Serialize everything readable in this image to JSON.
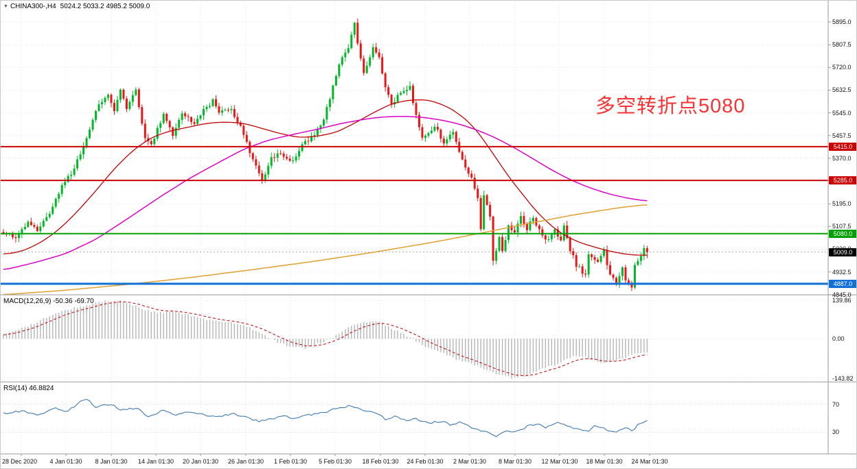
{
  "header": {
    "marker": "▼",
    "symbol": "CHINA300-,H4",
    "values": "5024.2 5033.2 4985.2 5009.0"
  },
  "annotation": {
    "text": "多空转折点5080",
    "color": "#fb3232"
  },
  "panes": {
    "macd": {
      "label": "MACD(12,26,9) -50.36 -69.70"
    },
    "rsi": {
      "label": "RSI(14) 46.8824"
    }
  },
  "colors": {
    "background": "#ffffff",
    "grid": "#e0e0e0",
    "separator": "#9a9a9a",
    "axis_text": "#111111"
  },
  "chart_data": [
    {
      "type": "candlestick",
      "title": "CHINA300- H4 price chart",
      "symbol": "CHINA300-",
      "timeframe": "H4",
      "last_candle": {
        "open": 5024.2,
        "high": 5033.2,
        "low": 4985.2,
        "close": 5009.0
      },
      "num_candles": 210,
      "y_range": [
        4845,
        5940
      ],
      "y_tick_labels": [
        "5895.0",
        "5807.5",
        "5720.0",
        "5632.5",
        "5545.0",
        "5457.5",
        "5370.0",
        "5282.5",
        "5195.0",
        "5107.5",
        "5020.0",
        "4932.5",
        "4845.0"
      ],
      "x_tick_labels": [
        "28 Dec 2020",
        "4 Jan 01:30",
        "8 Jan 01:30",
        "14 Jan 01:30",
        "20 Jan 01:30",
        "26 Jan 01:30",
        "1 Feb 01:30",
        "5 Feb 01:30",
        "18 Feb 01:30",
        "24 Feb 01:30",
        "2 Mar 01:30",
        "8 Mar 01:30",
        "12 Mar 01:30",
        "18 Mar 01:30",
        "24 Mar 01:30"
      ],
      "up_color": "#00b728",
      "down_color": "#ea1515",
      "price_path_anchors": [
        [
          0,
          5085
        ],
        [
          4,
          5060
        ],
        [
          8,
          5120
        ],
        [
          11,
          5090
        ],
        [
          16,
          5180
        ],
        [
          19,
          5265
        ],
        [
          23,
          5330
        ],
        [
          26,
          5420
        ],
        [
          28,
          5480
        ],
        [
          30,
          5560
        ],
        [
          34,
          5610
        ],
        [
          36,
          5555
        ],
        [
          38,
          5640
        ],
        [
          40,
          5565
        ],
        [
          43,
          5630
        ],
        [
          46,
          5450
        ],
        [
          48,
          5420
        ],
        [
          52,
          5545
        ],
        [
          55,
          5460
        ],
        [
          58,
          5545
        ],
        [
          62,
          5505
        ],
        [
          65,
          5555
        ],
        [
          68,
          5590
        ],
        [
          70,
          5545
        ],
        [
          74,
          5560
        ],
        [
          77,
          5490
        ],
        [
          80,
          5395
        ],
        [
          84,
          5280
        ],
        [
          87,
          5370
        ],
        [
          90,
          5390
        ],
        [
          94,
          5355
        ],
        [
          97,
          5420
        ],
        [
          101,
          5465
        ],
        [
          104,
          5520
        ],
        [
          106,
          5600
        ],
        [
          109,
          5730
        ],
        [
          112,
          5795
        ],
        [
          114,
          5885
        ],
        [
          115,
          5805
        ],
        [
          117,
          5700
        ],
        [
          120,
          5790
        ],
        [
          122,
          5755
        ],
        [
          124,
          5640
        ],
        [
          126,
          5575
        ],
        [
          128,
          5615
        ],
        [
          132,
          5650
        ],
        [
          134,
          5530
        ],
        [
          136,
          5450
        ],
        [
          140,
          5495
        ],
        [
          143,
          5430
        ],
        [
          146,
          5465
        ],
        [
          149,
          5360
        ],
        [
          152,
          5295
        ],
        [
          154,
          5210
        ],
        [
          155,
          5095
        ],
        [
          156,
          5230
        ],
        [
          158,
          5150
        ],
        [
          159,
          4975
        ],
        [
          161,
          5065
        ],
        [
          162,
          5020
        ],
        [
          164,
          5105
        ],
        [
          166,
          5085
        ],
        [
          168,
          5145
        ],
        [
          170,
          5100
        ],
        [
          172,
          5140
        ],
        [
          174,
          5090
        ],
        [
          176,
          5050
        ],
        [
          179,
          5090
        ],
        [
          181,
          5055
        ],
        [
          182,
          5105
        ],
        [
          184,
          5020
        ],
        [
          186,
          4960
        ],
        [
          189,
          4920
        ],
        [
          190,
          5000
        ],
        [
          193,
          4965
        ],
        [
          195,
          5010
        ],
        [
          197,
          4920
        ],
        [
          199,
          4890
        ],
        [
          201,
          4950
        ],
        [
          202,
          4905
        ],
        [
          204,
          4880
        ],
        [
          205,
          4960
        ],
        [
          207,
          4990
        ],
        [
          208,
          5024
        ],
        [
          209,
          5009
        ]
      ],
      "moving_averages": [
        {
          "name": "ma-fast-red",
          "color": "#c00000",
          "width": 1.3,
          "anchors": [
            [
              0,
              5000
            ],
            [
              6,
              5012
            ],
            [
              12,
              5045
            ],
            [
              18,
              5095
            ],
            [
              24,
              5165
            ],
            [
              30,
              5245
            ],
            [
              36,
              5330
            ],
            [
              42,
              5400
            ],
            [
              48,
              5450
            ],
            [
              54,
              5475
            ],
            [
              60,
              5490
            ],
            [
              66,
              5505
            ],
            [
              72,
              5510
            ],
            [
              78,
              5505
            ],
            [
              84,
              5485
            ],
            [
              90,
              5465
            ],
            [
              96,
              5450
            ],
            [
              102,
              5455
            ],
            [
              108,
              5470
            ],
            [
              114,
              5505
            ],
            [
              120,
              5545
            ],
            [
              126,
              5580
            ],
            [
              132,
              5595
            ],
            [
              138,
              5595
            ],
            [
              144,
              5570
            ],
            [
              148,
              5540
            ],
            [
              152,
              5500
            ],
            [
              156,
              5440
            ],
            [
              160,
              5370
            ],
            [
              164,
              5300
            ],
            [
              168,
              5240
            ],
            [
              172,
              5180
            ],
            [
              176,
              5130
            ],
            [
              180,
              5090
            ],
            [
              184,
              5062
            ],
            [
              188,
              5042
            ],
            [
              192,
              5028
            ],
            [
              196,
              5015
            ],
            [
              200,
              5005
            ],
            [
              204,
              4998
            ],
            [
              209,
              4997
            ]
          ]
        },
        {
          "name": "ma-mid-magenta",
          "color": "#dd00c8",
          "width": 1.5,
          "anchors": [
            [
              0,
              4940
            ],
            [
              10,
              4968
            ],
            [
              20,
              5002
            ],
            [
              30,
              5058
            ],
            [
              40,
              5135
            ],
            [
              50,
              5215
            ],
            [
              60,
              5290
            ],
            [
              70,
              5355
            ],
            [
              78,
              5405
            ],
            [
              86,
              5440
            ],
            [
              94,
              5462
            ],
            [
              102,
              5482
            ],
            [
              110,
              5505
            ],
            [
              118,
              5522
            ],
            [
              124,
              5530
            ],
            [
              130,
              5532
            ],
            [
              136,
              5528
            ],
            [
              142,
              5518
            ],
            [
              148,
              5502
            ],
            [
              154,
              5478
            ],
            [
              160,
              5448
            ],
            [
              166,
              5410
            ],
            [
              172,
              5368
            ],
            [
              178,
              5325
            ],
            [
              184,
              5288
            ],
            [
              190,
              5258
            ],
            [
              196,
              5235
            ],
            [
              202,
              5218
            ],
            [
              209,
              5205
            ]
          ]
        },
        {
          "name": "ma-slow-orange",
          "color": "#e0a030",
          "width": 1.5,
          "anchors": [
            [
              0,
              4845
            ],
            [
              20,
              4862
            ],
            [
              40,
              4884
            ],
            [
              60,
              4910
            ],
            [
              80,
              4940
            ],
            [
              100,
              4972
            ],
            [
              120,
              5008
            ],
            [
              140,
              5048
            ],
            [
              155,
              5082
            ],
            [
              170,
              5118
            ],
            [
              185,
              5152
            ],
            [
              200,
              5180
            ],
            [
              209,
              5192
            ]
          ]
        }
      ],
      "horizontal_levels": [
        {
          "price": 5415.0,
          "label": "5415.0",
          "color": "#cc0000",
          "width": 2
        },
        {
          "price": 5285.0,
          "label": "5285.0",
          "color": "#cc0000",
          "width": 2
        },
        {
          "price": 5080.0,
          "label": "5080.0",
          "color": "#00a000",
          "width": 2
        },
        {
          "price": 4887.0,
          "label": "4887.0",
          "color": "#1070d8",
          "width": 3
        }
      ],
      "current_price": {
        "price": 5009.0,
        "label": "5009.0",
        "badge_color": "#000000",
        "line_color": "#a8a8a8"
      },
      "annotations": [
        "多空转折点5080"
      ]
    },
    {
      "type": "bar",
      "name": "MACD",
      "params": "12,26,9",
      "current_macd": -50.36,
      "current_signal": -69.7,
      "y_ticks": [
        "139.86",
        "0.00",
        "-143.82"
      ],
      "histogram_color": "#b4b4b4",
      "signal_color": "#c00000",
      "histogram_anchors": [
        [
          0,
          15
        ],
        [
          8,
          45
        ],
        [
          17,
          95
        ],
        [
          26,
          120
        ],
        [
          34,
          138
        ],
        [
          37,
          140
        ],
        [
          41,
          128
        ],
        [
          46,
          105
        ],
        [
          50,
          95
        ],
        [
          55,
          100
        ],
        [
          59,
          90
        ],
        [
          64,
          75
        ],
        [
          68,
          68
        ],
        [
          73,
          60
        ],
        [
          77,
          50
        ],
        [
          82,
          30
        ],
        [
          86,
          5
        ],
        [
          89,
          -15
        ],
        [
          94,
          -30
        ],
        [
          98,
          -35
        ],
        [
          103,
          -15
        ],
        [
          107,
          5
        ],
        [
          112,
          40
        ],
        [
          116,
          60
        ],
        [
          121,
          65
        ],
        [
          125,
          45
        ],
        [
          129,
          20
        ],
        [
          133,
          0
        ],
        [
          137,
          -30
        ],
        [
          143,
          -55
        ],
        [
          147,
          -75
        ],
        [
          153,
          -95
        ],
        [
          157,
          -115
        ],
        [
          162,
          -135
        ],
        [
          165,
          -143
        ],
        [
          168,
          -138
        ],
        [
          172,
          -125
        ],
        [
          175,
          -110
        ],
        [
          179,
          -95
        ],
        [
          182,
          -78
        ],
        [
          185,
          -65
        ],
        [
          189,
          -68
        ],
        [
          192,
          -80
        ],
        [
          195,
          -88
        ],
        [
          199,
          -80
        ],
        [
          202,
          -68
        ],
        [
          205,
          -58
        ],
        [
          209,
          -50.36
        ]
      ]
    },
    {
      "type": "line",
      "name": "RSI",
      "period": 14,
      "current": 46.8824,
      "levels": [
        70,
        30
      ],
      "level_labels": [
        "70",
        "30"
      ],
      "line_color": "#3c78b4",
      "y_range": [
        0,
        100
      ],
      "line_anchors": [
        [
          0,
          57
        ],
        [
          6,
          60
        ],
        [
          11,
          55
        ],
        [
          17,
          64
        ],
        [
          21,
          60
        ],
        [
          25,
          74
        ],
        [
          27,
          78
        ],
        [
          30,
          66
        ],
        [
          35,
          70
        ],
        [
          38,
          62
        ],
        [
          43,
          65
        ],
        [
          47,
          53
        ],
        [
          52,
          61
        ],
        [
          56,
          54
        ],
        [
          60,
          59
        ],
        [
          65,
          55
        ],
        [
          69,
          51
        ],
        [
          74,
          57
        ],
        [
          78,
          52
        ],
        [
          83,
          45
        ],
        [
          86,
          48
        ],
        [
          91,
          53
        ],
        [
          95,
          49
        ],
        [
          99,
          55
        ],
        [
          104,
          58
        ],
        [
          108,
          64
        ],
        [
          113,
          68
        ],
        [
          117,
          62
        ],
        [
          121,
          57
        ],
        [
          124,
          49
        ],
        [
          127,
          52
        ],
        [
          131,
          46
        ],
        [
          134,
          49
        ],
        [
          138,
          43
        ],
        [
          142,
          46
        ],
        [
          145,
          41
        ],
        [
          148,
          44
        ],
        [
          152,
          37
        ],
        [
          155,
          33
        ],
        [
          159,
          27
        ],
        [
          160,
          25
        ],
        [
          163,
          33
        ],
        [
          166,
          30
        ],
        [
          170,
          38
        ],
        [
          173,
          42
        ],
        [
          176,
          37
        ],
        [
          180,
          43
        ],
        [
          183,
          39
        ],
        [
          186,
          34
        ],
        [
          190,
          31
        ],
        [
          192,
          39
        ],
        [
          195,
          35
        ],
        [
          199,
          30
        ],
        [
          202,
          36
        ],
        [
          204,
          32
        ],
        [
          206,
          40
        ],
        [
          208,
          44
        ],
        [
          209,
          46.8824
        ]
      ]
    }
  ]
}
